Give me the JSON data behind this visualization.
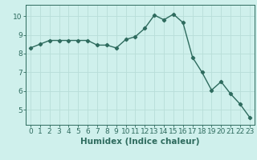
{
  "x": [
    0,
    1,
    2,
    3,
    4,
    5,
    6,
    7,
    8,
    9,
    10,
    11,
    12,
    13,
    14,
    15,
    16,
    17,
    18,
    19,
    20,
    21,
    22,
    23
  ],
  "y": [
    8.3,
    8.5,
    8.7,
    8.7,
    8.7,
    8.7,
    8.7,
    8.45,
    8.45,
    8.3,
    8.75,
    8.9,
    9.35,
    10.05,
    9.8,
    10.1,
    9.65,
    7.8,
    7.0,
    6.05,
    6.5,
    5.85,
    5.3,
    4.6
  ],
  "line_color": "#2e6b5e",
  "bg_color": "#cff0ec",
  "grid_color": "#b8ddd8",
  "xlabel": "Humidex (Indice chaleur)",
  "ylim": [
    4.2,
    10.6
  ],
  "xlim": [
    -0.5,
    23.5
  ],
  "yticks": [
    5,
    6,
    7,
    8,
    9,
    10
  ],
  "xticks": [
    0,
    1,
    2,
    3,
    4,
    5,
    6,
    7,
    8,
    9,
    10,
    11,
    12,
    13,
    14,
    15,
    16,
    17,
    18,
    19,
    20,
    21,
    22,
    23
  ],
  "xlabel_fontsize": 7.5,
  "tick_fontsize": 6.5,
  "marker": "D",
  "marker_size": 2.2,
  "linewidth": 1.0
}
